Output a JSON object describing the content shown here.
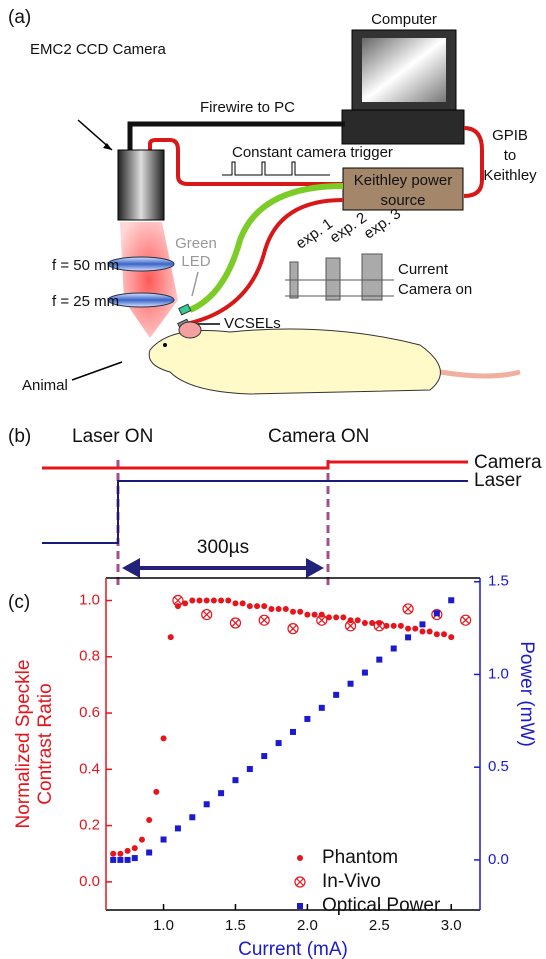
{
  "panel_a": {
    "label": "(a)",
    "computer": "Computer",
    "camera": "EMC2 CCD Camera",
    "firewire": "Firewire to PC",
    "gpib": [
      "GPIB",
      "to",
      "Keithley"
    ],
    "trigger": "Constant camera trigger",
    "keithley": [
      "Keithley power",
      "source"
    ],
    "led": [
      "Green",
      "LED"
    ],
    "lens1": "f = 50 mm",
    "lens2": "f = 25 mm",
    "exps": [
      "exp. 1",
      "exp. 2",
      "exp. 3"
    ],
    "current": "Current",
    "camera_on": "Camera on",
    "vcsels": "VCSELs",
    "animal": "Animal"
  },
  "panel_b": {
    "label": "(b)",
    "laser_on": "Laser ON",
    "camera_on": "Camera ON",
    "camera": "Camera",
    "laser": "Laser",
    "delay": "300µs"
  },
  "chart_data": {
    "type": "scatter",
    "panel_label": "(c)",
    "y_label": [
      "Normalized Speckle",
      "Contrast Ratio"
    ],
    "y2_label": "Power (mW)",
    "x_label": "Current (mA)",
    "xlim": [
      0.6,
      3.2
    ],
    "xticks": [
      {
        "value": 1,
        "label": "1.0"
      },
      1.5,
      {
        "value": 2,
        "label": "2.0"
      },
      2.5,
      {
        "value": 3,
        "label": "3.0"
      }
    ],
    "ylim": [
      -0.1,
      1.08
    ],
    "yticks": [
      {
        "value": 0,
        "label": "0.0"
      },
      0.2,
      0.4,
      0.6,
      0.8,
      {
        "value": 1,
        "label": "1.0"
      }
    ],
    "y2lim": [
      -0.27,
      1.52
    ],
    "y2ticks": [
      {
        "value": 0,
        "label": "0.0"
      },
      0.5,
      {
        "value": 1,
        "label": "1.0"
      },
      1.5
    ],
    "y_color": "#e8141c",
    "y2_color": "#1a1ad0",
    "legend": "lower right",
    "series": [
      {
        "name": "Phantom",
        "color": "#e8141c",
        "marker": "dot",
        "x": [
          0.65,
          0.7,
          0.75,
          0.8,
          0.85,
          0.9,
          0.95,
          1.0,
          1.05,
          1.1,
          1.15,
          1.2,
          1.25,
          1.3,
          1.35,
          1.4,
          1.45,
          1.5,
          1.55,
          1.6,
          1.65,
          1.7,
          1.75,
          1.8,
          1.85,
          1.9,
          1.95,
          2.0,
          2.05,
          2.1,
          2.15,
          2.2,
          2.25,
          2.3,
          2.35,
          2.4,
          2.45,
          2.5,
          2.55,
          2.6,
          2.65,
          2.7,
          2.75,
          2.8,
          2.85,
          2.9,
          2.95,
          3.0
        ],
        "values": [
          0.1,
          0.1,
          0.11,
          0.12,
          0.15,
          0.22,
          0.32,
          0.51,
          0.87,
          0.98,
          0.99,
          1.0,
          1.0,
          1.0,
          1.0,
          1.0,
          1.0,
          0.99,
          0.99,
          0.98,
          0.98,
          0.98,
          0.97,
          0.97,
          0.97,
          0.96,
          0.96,
          0.95,
          0.95,
          0.95,
          0.94,
          0.94,
          0.94,
          0.93,
          0.93,
          0.92,
          0.92,
          0.92,
          0.91,
          0.91,
          0.91,
          0.9,
          0.9,
          0.89,
          0.89,
          0.88,
          0.88,
          0.87
        ]
      },
      {
        "name": "In-Vivo",
        "color": "#e8141c",
        "marker": "crossed-circle",
        "x": [
          1.1,
          1.3,
          1.5,
          1.7,
          1.9,
          2.1,
          2.3,
          2.5,
          2.7,
          2.9,
          3.1
        ],
        "values": [
          1.0,
          0.95,
          0.92,
          0.93,
          0.9,
          0.93,
          0.91,
          0.91,
          0.97,
          0.95,
          0.93
        ]
      },
      {
        "name": "Optical Power",
        "color": "#1a1ad0",
        "marker": "square",
        "axis": "y2",
        "x": [
          0.65,
          0.7,
          0.75,
          0.8,
          0.9,
          1.0,
          1.1,
          1.2,
          1.3,
          1.4,
          1.5,
          1.6,
          1.7,
          1.8,
          1.9,
          2.0,
          2.1,
          2.2,
          2.3,
          2.4,
          2.5,
          2.6,
          2.7,
          2.8,
          2.9,
          3.0
        ],
        "values": [
          0.0,
          0.0,
          0.0,
          0.01,
          0.04,
          0.11,
          0.17,
          0.23,
          0.3,
          0.36,
          0.43,
          0.49,
          0.56,
          0.63,
          0.69,
          0.76,
          0.82,
          0.89,
          0.95,
          1.01,
          1.08,
          1.14,
          1.2,
          1.27,
          1.33,
          1.4
        ]
      }
    ]
  }
}
